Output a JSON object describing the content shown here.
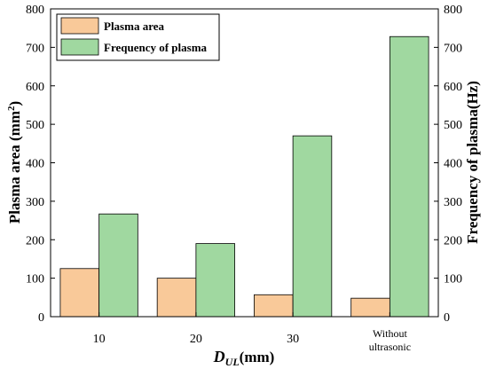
{
  "chart_data": {
    "type": "bar",
    "categories": [
      "10",
      "20",
      "30",
      "Without ultrasonic"
    ],
    "category_lines": [
      [
        "10"
      ],
      [
        "20"
      ],
      [
        "30"
      ],
      [
        "Without",
        "ultrasonic"
      ]
    ],
    "series": [
      {
        "name": "Plasma area",
        "values": [
          125,
          100,
          57,
          48
        ],
        "axis": "left",
        "color": "#f9c999"
      },
      {
        "name": "Frequency of plasma",
        "values": [
          267,
          190,
          470,
          728
        ],
        "axis": "right",
        "color": "#a0d8a0"
      }
    ],
    "xlabel": {
      "main": "D",
      "subscript": "UL",
      "suffix": "(mm)"
    },
    "ylabel_left": {
      "text": "Plasma area (mm",
      "superscript": "2",
      "close": ")"
    },
    "ylabel_right": "Frequency of plasma(Hz)",
    "ylim_left": [
      0,
      800
    ],
    "ylim_right": [
      0,
      800
    ],
    "yticks": [
      0,
      100,
      200,
      300,
      400,
      500,
      600,
      700,
      800
    ],
    "grid": false,
    "legend_position": "top-left",
    "edge_color": "#000000"
  }
}
